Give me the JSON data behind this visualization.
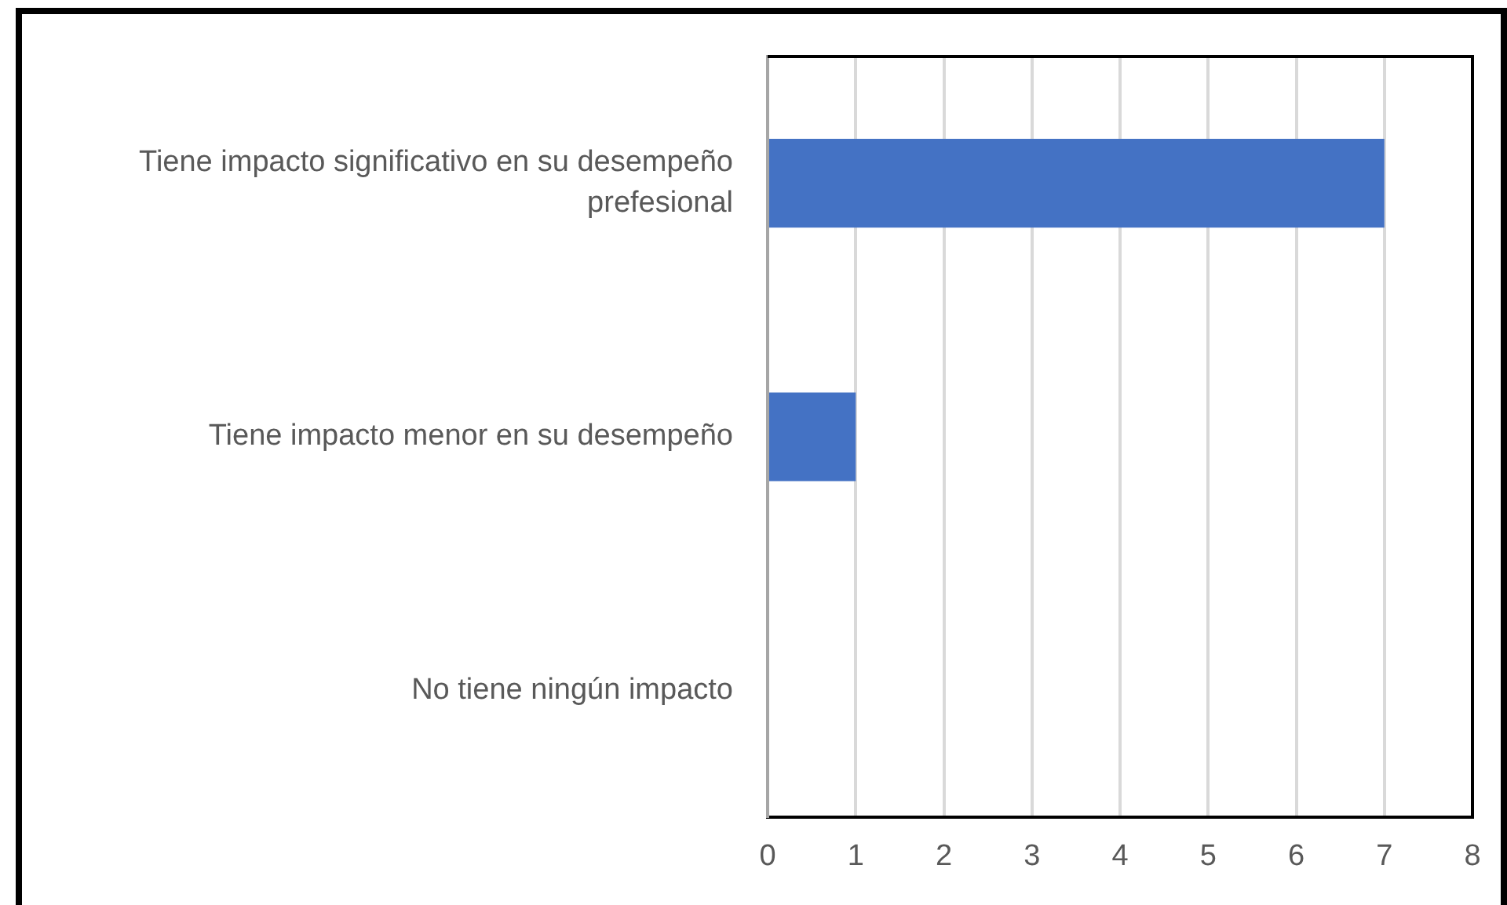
{
  "chart_data": {
    "type": "bar",
    "orientation": "horizontal",
    "categories": [
      "Tiene impacto significativo en su desempeño prefesional",
      "Tiene impacto menor en su desempeño",
      "No tiene ningún impacto"
    ],
    "values": [
      7,
      1,
      0
    ],
    "color": "#4472c4",
    "xlim": [
      0,
      8
    ],
    "xticks": [
      0,
      1,
      2,
      3,
      4,
      5,
      6,
      7,
      8
    ],
    "grid": "x",
    "legend": false
  }
}
